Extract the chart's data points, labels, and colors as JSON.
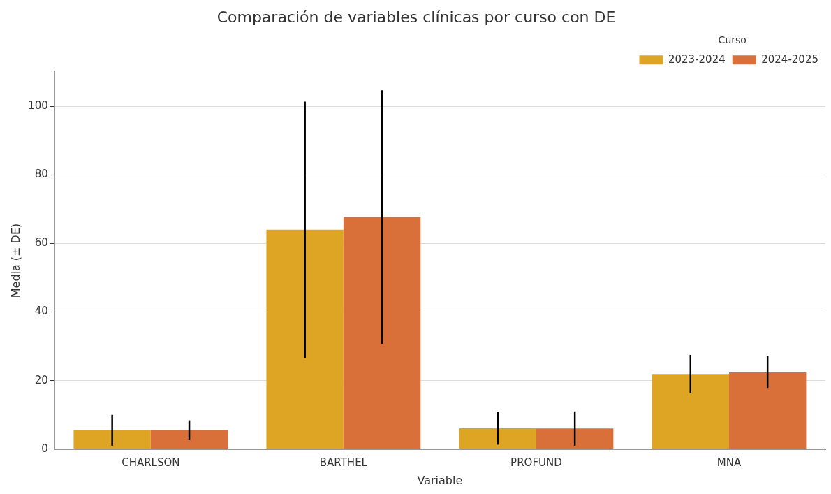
{
  "chart_data": {
    "type": "bar",
    "title": "Comparación de variables clínicas por curso con DE",
    "xlabel": "Variable",
    "ylabel": "Media (± DE)",
    "legend_title": "Curso",
    "categories": [
      "CHARLSON",
      "BARTHEL",
      "PROFUND",
      "MNA"
    ],
    "series": [
      {
        "name": "2023-2024",
        "color": "#dea423",
        "values": [
          5.5,
          64.0,
          6.1,
          21.9
        ],
        "errors": [
          4.5,
          37.4,
          4.8,
          5.6
        ]
      },
      {
        "name": "2024-2025",
        "color": "#d9703a",
        "values": [
          5.5,
          67.7,
          6.0,
          22.4
        ],
        "errors": [
          2.9,
          37.0,
          5.0,
          4.75
        ]
      }
    ],
    "ylim": [
      0,
      110
    ],
    "yticks": [
      0,
      20,
      40,
      60,
      80,
      100
    ],
    "grid": "y",
    "legend": "top right"
  }
}
